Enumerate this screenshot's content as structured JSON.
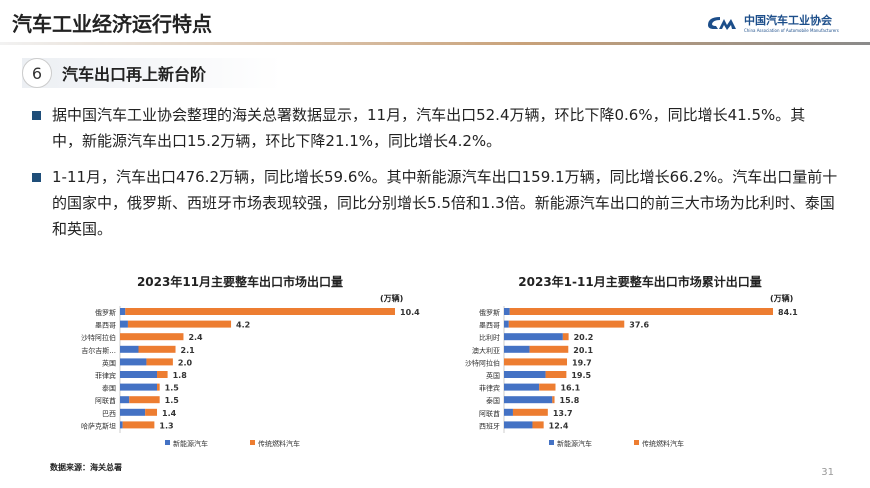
{
  "header": {
    "title": "汽车工业经济运行特点",
    "logo_cn": "中国汽车工业协会",
    "logo_en": "China Association of Automobile Manufacturers"
  },
  "section": {
    "number": "6",
    "title": "汽车出口再上新台阶"
  },
  "bullets": [
    "据中国汽车工业协会整理的海关总署数据显示，11月，汽车出口52.4万辆，环比下降0.6%，同比增长41.5%。其中，新能源汽车出口15.2万辆，环比下降21.1%，同比增长4.2%。",
    "1-11月，汽车出口476.2万辆，同比增长59.6%。其中新能源汽车出口159.1万辆，同比增长66.2%。汽车出口量前十的国家中，俄罗斯、西班牙市场表现较强，同比分别增长5.5倍和1.3倍。新能源汽车出口的前三大市场为比利时、泰国和英国。"
  ],
  "colors": {
    "nev": "#4472c4",
    "ice": "#ed7d31"
  },
  "chart_data": [
    {
      "type": "bar",
      "orientation": "horizontal",
      "stacked": true,
      "title": "2023年11月主要整车出口市场出口量",
      "unit": "(万辆)",
      "categories": [
        "俄罗斯",
        "墨西哥",
        "沙特阿拉伯",
        "吉尔吉斯...",
        "英国",
        "菲律宾",
        "泰国",
        "阿联酋",
        "巴西",
        "哈萨克斯坦"
      ],
      "totals": [
        "10.4",
        "4.2",
        "2.4",
        "2.1",
        "2.0",
        "1.8",
        "1.5",
        "1.5",
        "1.4",
        "1.3"
      ],
      "series": [
        {
          "name": "新能源汽车",
          "values": [
            0.2,
            0.3,
            0,
            0.7,
            1.0,
            1.4,
            1.4,
            0.35,
            0.95,
            0.1
          ]
        },
        {
          "name": "传统燃料汽车",
          "values": [
            10.2,
            3.9,
            2.4,
            1.4,
            1.0,
            0.4,
            0.1,
            1.15,
            0.45,
            1.2
          ]
        }
      ],
      "xlim": [
        0,
        10.4
      ]
    },
    {
      "type": "bar",
      "orientation": "horizontal",
      "stacked": true,
      "title": "2023年1-11月主要整车出口市场累计出口量",
      "unit": "(万辆)",
      "categories": [
        "俄罗斯",
        "墨西哥",
        "比利时",
        "澳大利亚",
        "沙特阿拉伯",
        "英国",
        "菲律宾",
        "泰国",
        "阿联酋",
        "西班牙"
      ],
      "totals": [
        "84.1",
        "37.6",
        "20.2",
        "20.1",
        "19.7",
        "19.5",
        "16.1",
        "15.8",
        "13.7",
        "12.4"
      ],
      "series": [
        {
          "name": "新能源汽车",
          "values": [
            1.8,
            1.5,
            18.4,
            8.0,
            0,
            13.0,
            11.0,
            15.1,
            2.8,
            8.9
          ]
        },
        {
          "name": "传统燃料汽车",
          "values": [
            82.3,
            36.1,
            1.8,
            12.1,
            19.7,
            6.5,
            5.1,
            0.7,
            10.9,
            3.5
          ]
        }
      ],
      "xlim": [
        0,
        84.1
      ]
    }
  ],
  "source": "数据来源：海关总署",
  "page": "31"
}
